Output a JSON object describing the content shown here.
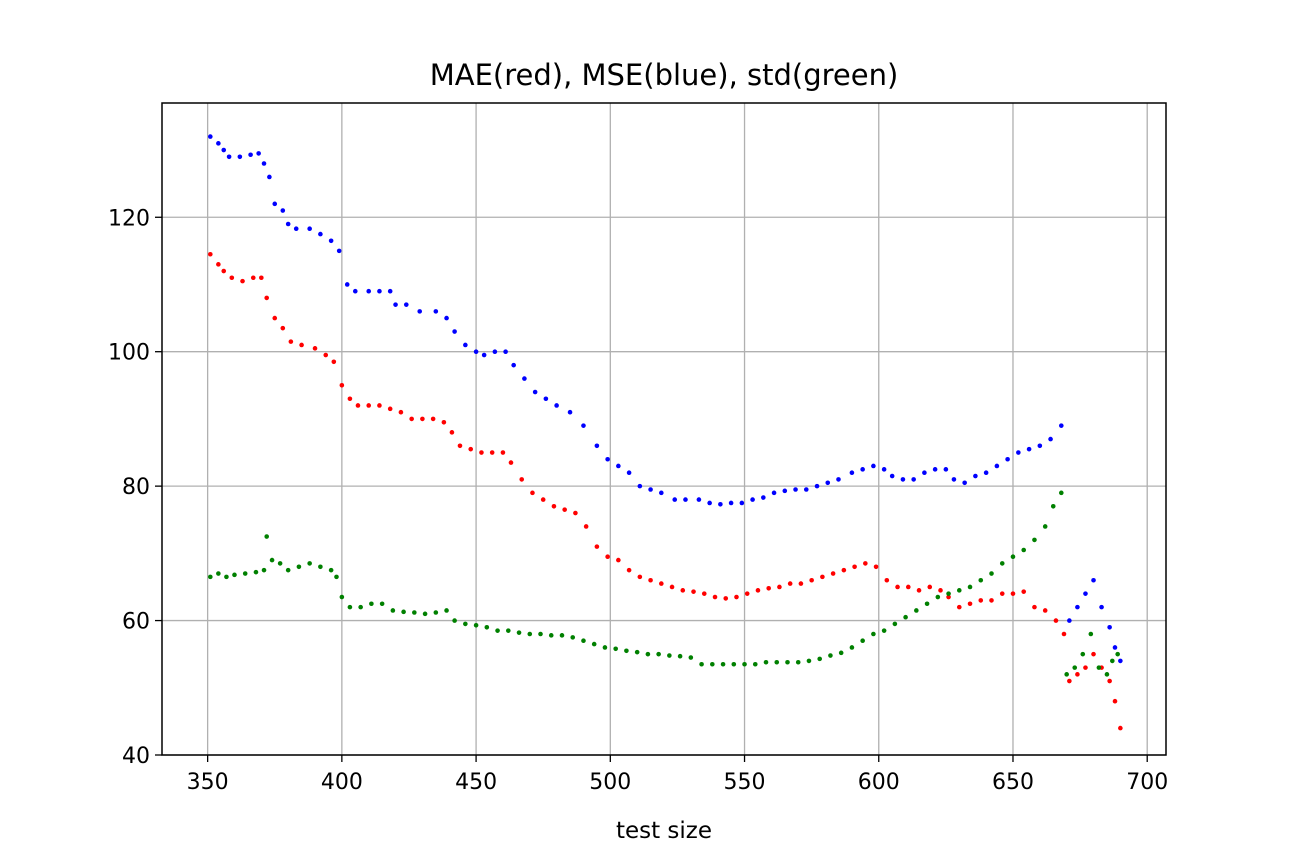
{
  "chart_data": {
    "type": "scatter",
    "title": "MAE(red), MSE(blue), std(green)",
    "xlabel": "test size",
    "ylabel": "",
    "xlim": [
      333,
      707
    ],
    "ylim": [
      40,
      137
    ],
    "xticks": [
      350,
      400,
      450,
      500,
      550,
      600,
      650,
      700
    ],
    "yticks": [
      40,
      60,
      80,
      100,
      120
    ],
    "grid": true,
    "legend": "none",
    "series": [
      {
        "color": "#0000ff",
        "points": [
          [
            351,
            132
          ],
          [
            354,
            131
          ],
          [
            356,
            130
          ],
          [
            358,
            129
          ],
          [
            362,
            129
          ],
          [
            366,
            129.3
          ],
          [
            369,
            129.5
          ],
          [
            371,
            128
          ],
          [
            373,
            126
          ],
          [
            375,
            122
          ],
          [
            378,
            121
          ],
          [
            380,
            119
          ],
          [
            383,
            118.3
          ],
          [
            388,
            118.3
          ],
          [
            392,
            117.5
          ],
          [
            396,
            116.5
          ],
          [
            399,
            115
          ],
          [
            402,
            110
          ],
          [
            405,
            109
          ],
          [
            410,
            109
          ],
          [
            414,
            109
          ],
          [
            418,
            109
          ],
          [
            420,
            107
          ],
          [
            424,
            107
          ],
          [
            429,
            106
          ],
          [
            435,
            106
          ],
          [
            439,
            105
          ],
          [
            442,
            103
          ],
          [
            446,
            101
          ],
          [
            450,
            100
          ],
          [
            453,
            99.5
          ],
          [
            457,
            100
          ],
          [
            461,
            100
          ],
          [
            464,
            98
          ],
          [
            468,
            96
          ],
          [
            472,
            94
          ],
          [
            476,
            93
          ],
          [
            480,
            92
          ],
          [
            485,
            91
          ],
          [
            490,
            89
          ],
          [
            495,
            86
          ],
          [
            499,
            84
          ],
          [
            503,
            83
          ],
          [
            507,
            82
          ],
          [
            511,
            80
          ],
          [
            515,
            79.5
          ],
          [
            519,
            79
          ],
          [
            524,
            78
          ],
          [
            528,
            78
          ],
          [
            533,
            78
          ],
          [
            537,
            77.5
          ],
          [
            541,
            77.3
          ],
          [
            545,
            77.5
          ],
          [
            549,
            77.5
          ],
          [
            553,
            78
          ],
          [
            557,
            78.3
          ],
          [
            561,
            79
          ],
          [
            565,
            79.3
          ],
          [
            569,
            79.5
          ],
          [
            573,
            79.5
          ],
          [
            577,
            80
          ],
          [
            581,
            80.5
          ],
          [
            585,
            81
          ],
          [
            590,
            82
          ],
          [
            594,
            82.5
          ],
          [
            598,
            83
          ],
          [
            602,
            82.5
          ],
          [
            605,
            81.5
          ],
          [
            609,
            81
          ],
          [
            613,
            81
          ],
          [
            617,
            82
          ],
          [
            621,
            82.5
          ],
          [
            625,
            82.5
          ],
          [
            628,
            81
          ],
          [
            632,
            80.5
          ],
          [
            636,
            81.5
          ],
          [
            640,
            82
          ],
          [
            644,
            83
          ],
          [
            648,
            84
          ],
          [
            652,
            85
          ],
          [
            656,
            85.5
          ],
          [
            660,
            86
          ],
          [
            664,
            87
          ],
          [
            668,
            89
          ],
          [
            671,
            60
          ],
          [
            674,
            62
          ],
          [
            677,
            64
          ],
          [
            680,
            66
          ],
          [
            683,
            62
          ],
          [
            686,
            59
          ],
          [
            688,
            56
          ],
          [
            690,
            54
          ]
        ]
      },
      {
        "color": "#ff0000",
        "points": [
          [
            351,
            114.5
          ],
          [
            354,
            113
          ],
          [
            356,
            112
          ],
          [
            359,
            111
          ],
          [
            363,
            110.5
          ],
          [
            367,
            111
          ],
          [
            370,
            111
          ],
          [
            372,
            108
          ],
          [
            375,
            105
          ],
          [
            378,
            103.5
          ],
          [
            381,
            101.5
          ],
          [
            385,
            101
          ],
          [
            390,
            100.5
          ],
          [
            394,
            99.5
          ],
          [
            397,
            98.5
          ],
          [
            400,
            95
          ],
          [
            403,
            93
          ],
          [
            406,
            92
          ],
          [
            410,
            92
          ],
          [
            414,
            92
          ],
          [
            418,
            91.5
          ],
          [
            422,
            91
          ],
          [
            426,
            90
          ],
          [
            430,
            90
          ],
          [
            434,
            90
          ],
          [
            438,
            89.5
          ],
          [
            441,
            88
          ],
          [
            444,
            86
          ],
          [
            448,
            85.5
          ],
          [
            452,
            85
          ],
          [
            456,
            85
          ],
          [
            460,
            85
          ],
          [
            463,
            83.5
          ],
          [
            467,
            81
          ],
          [
            471,
            79
          ],
          [
            475,
            78
          ],
          [
            479,
            77
          ],
          [
            483,
            76.5
          ],
          [
            487,
            76
          ],
          [
            491,
            74
          ],
          [
            495,
            71
          ],
          [
            499,
            69.5
          ],
          [
            503,
            69
          ],
          [
            507,
            67.5
          ],
          [
            511,
            66.5
          ],
          [
            515,
            66
          ],
          [
            519,
            65.5
          ],
          [
            523,
            65
          ],
          [
            527,
            64.5
          ],
          [
            531,
            64.3
          ],
          [
            535,
            64
          ],
          [
            539,
            63.5
          ],
          [
            543,
            63.3
          ],
          [
            547,
            63.5
          ],
          [
            551,
            64
          ],
          [
            555,
            64.5
          ],
          [
            559,
            64.8
          ],
          [
            563,
            65
          ],
          [
            567,
            65.5
          ],
          [
            571,
            65.5
          ],
          [
            575,
            66
          ],
          [
            579,
            66.5
          ],
          [
            583,
            67
          ],
          [
            587,
            67.5
          ],
          [
            591,
            68
          ],
          [
            595,
            68.5
          ],
          [
            599,
            68
          ],
          [
            603,
            66
          ],
          [
            607,
            65
          ],
          [
            611,
            65
          ],
          [
            615,
            64.5
          ],
          [
            619,
            65
          ],
          [
            623,
            64.5
          ],
          [
            626,
            63.5
          ],
          [
            630,
            62
          ],
          [
            634,
            62.5
          ],
          [
            638,
            63
          ],
          [
            642,
            63
          ],
          [
            646,
            64
          ],
          [
            650,
            64
          ],
          [
            654,
            64.3
          ],
          [
            658,
            62
          ],
          [
            662,
            61.5
          ],
          [
            666,
            60
          ],
          [
            669,
            58
          ],
          [
            671,
            51
          ],
          [
            674,
            52
          ],
          [
            677,
            53
          ],
          [
            680,
            55
          ],
          [
            683,
            53
          ],
          [
            686,
            51
          ],
          [
            688,
            48
          ],
          [
            690,
            44
          ]
        ]
      },
      {
        "color": "#008000",
        "points": [
          [
            351,
            66.5
          ],
          [
            354,
            67
          ],
          [
            357,
            66.5
          ],
          [
            360,
            66.8
          ],
          [
            364,
            67
          ],
          [
            368,
            67.2
          ],
          [
            371,
            67.5
          ],
          [
            372,
            72.5
          ],
          [
            374,
            69
          ],
          [
            377,
            68.5
          ],
          [
            380,
            67.5
          ],
          [
            384,
            68
          ],
          [
            388,
            68.5
          ],
          [
            392,
            68
          ],
          [
            396,
            67.5
          ],
          [
            398,
            66.5
          ],
          [
            400,
            63.5
          ],
          [
            403,
            62
          ],
          [
            407,
            62
          ],
          [
            411,
            62.5
          ],
          [
            415,
            62.5
          ],
          [
            419,
            61.5
          ],
          [
            423,
            61.3
          ],
          [
            427,
            61.2
          ],
          [
            431,
            61
          ],
          [
            435,
            61.2
          ],
          [
            439,
            61.5
          ],
          [
            442,
            60
          ],
          [
            446,
            59.5
          ],
          [
            450,
            59.3
          ],
          [
            454,
            59
          ],
          [
            458,
            58.5
          ],
          [
            462,
            58.5
          ],
          [
            466,
            58.2
          ],
          [
            470,
            58
          ],
          [
            474,
            58
          ],
          [
            478,
            57.8
          ],
          [
            482,
            57.8
          ],
          [
            486,
            57.5
          ],
          [
            490,
            57
          ],
          [
            494,
            56.5
          ],
          [
            498,
            56
          ],
          [
            502,
            55.8
          ],
          [
            506,
            55.5
          ],
          [
            510,
            55.3
          ],
          [
            514,
            55
          ],
          [
            518,
            55
          ],
          [
            522,
            54.8
          ],
          [
            526,
            54.7
          ],
          [
            530,
            54.5
          ],
          [
            534,
            53.5
          ],
          [
            538,
            53.5
          ],
          [
            542,
            53.5
          ],
          [
            546,
            53.5
          ],
          [
            550,
            53.5
          ],
          [
            554,
            53.5
          ],
          [
            558,
            53.8
          ],
          [
            562,
            53.8
          ],
          [
            566,
            53.8
          ],
          [
            570,
            53.8
          ],
          [
            574,
            54
          ],
          [
            578,
            54.3
          ],
          [
            582,
            54.8
          ],
          [
            586,
            55.2
          ],
          [
            590,
            56
          ],
          [
            594,
            57
          ],
          [
            598,
            58
          ],
          [
            602,
            58.5
          ],
          [
            606,
            59.5
          ],
          [
            610,
            60.5
          ],
          [
            614,
            61.5
          ],
          [
            618,
            62.5
          ],
          [
            622,
            63.5
          ],
          [
            626,
            64
          ],
          [
            630,
            64.5
          ],
          [
            634,
            65
          ],
          [
            638,
            66
          ],
          [
            642,
            67
          ],
          [
            646,
            68.5
          ],
          [
            650,
            69.5
          ],
          [
            654,
            70.5
          ],
          [
            658,
            72
          ],
          [
            662,
            74
          ],
          [
            665,
            77
          ],
          [
            668,
            79
          ],
          [
            670,
            52
          ],
          [
            673,
            53
          ],
          [
            676,
            55
          ],
          [
            679,
            58
          ],
          [
            682,
            53
          ],
          [
            685,
            52
          ],
          [
            687,
            54
          ],
          [
            689,
            55
          ]
        ]
      }
    ]
  }
}
